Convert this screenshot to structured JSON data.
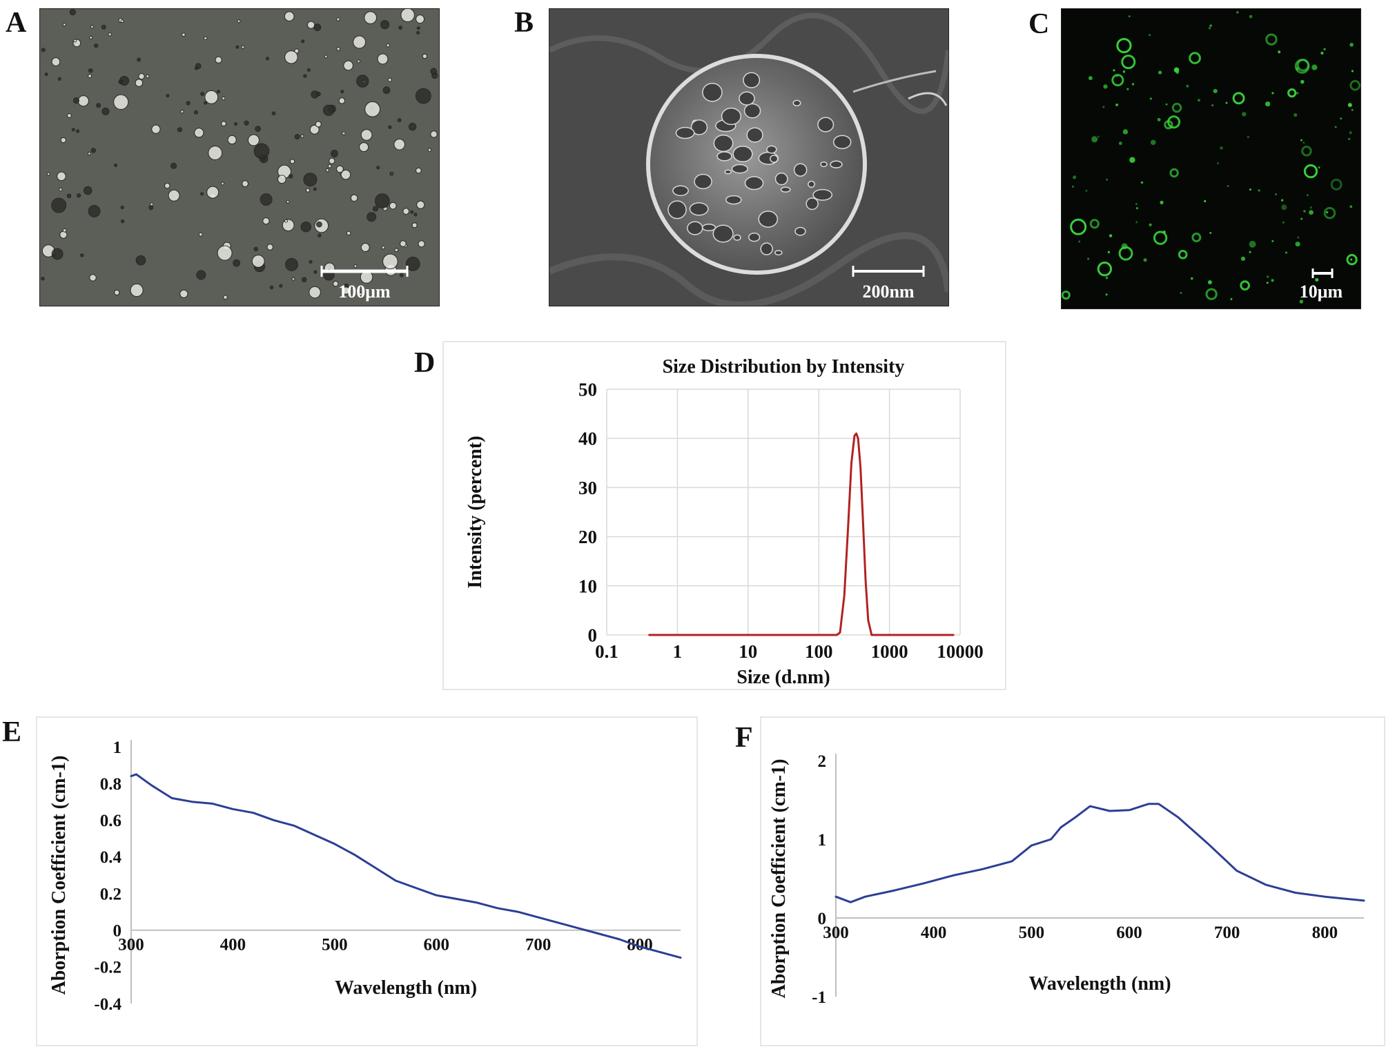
{
  "panels": {
    "A": {
      "letter": "A",
      "scale_bar": "100μm",
      "bg": "#5c5e58"
    },
    "B": {
      "letter": "B",
      "scale_bar": "200nm",
      "bg": "#4a4a4a"
    },
    "C": {
      "letter": "C",
      "scale_bar": "10μm",
      "bg": "#050805",
      "dot_color": "#39d13a"
    },
    "D": {
      "letter": "D"
    },
    "E": {
      "letter": "E"
    },
    "F": {
      "letter": "F"
    }
  },
  "chart_data": [
    {
      "id": "D",
      "type": "line",
      "title": "Size Distribution by Intensity",
      "xlabel": "Size (d.nm)",
      "ylabel": "Intensity (percent)",
      "x_scale": "log",
      "xlim": [
        0.1,
        10000
      ],
      "ylim": [
        0,
        50
      ],
      "x_ticks": [
        "0.1",
        "1",
        "10",
        "100",
        "1000",
        "10000"
      ],
      "y_ticks": [
        "0",
        "10",
        "20",
        "30",
        "40",
        "50"
      ],
      "grid": true,
      "line_color": "#b22222",
      "series": [
        {
          "x": [
            0.4,
            1,
            10,
            100,
            180,
            200,
            230,
            260,
            290,
            320,
            340,
            360,
            390,
            420,
            460,
            500,
            560,
            1000,
            8000
          ],
          "y": [
            0,
            0,
            0,
            0,
            0,
            0.5,
            8,
            22,
            35,
            40.5,
            41,
            40,
            34,
            24,
            11,
            3,
            0,
            0,
            0
          ]
        }
      ]
    },
    {
      "id": "E",
      "type": "line",
      "xlabel": "Wavelength (nm)",
      "ylabel": "Aborption Coefficient (cm-1)",
      "xlim": [
        300,
        840
      ],
      "ylim": [
        -0.4,
        1
      ],
      "x_ticks": [
        "300",
        "400",
        "500",
        "600",
        "700",
        "800"
      ],
      "y_ticks": [
        "-0.4",
        "-0.2",
        "0",
        "0.2",
        "0.4",
        "0.6",
        "0.8",
        "1"
      ],
      "grid": false,
      "line_color": "#2c3f94",
      "series": [
        {
          "x": [
            300,
            305,
            310,
            320,
            340,
            360,
            380,
            400,
            420,
            440,
            460,
            480,
            500,
            520,
            540,
            560,
            580,
            600,
            620,
            640,
            660,
            680,
            700,
            720,
            740,
            760,
            780,
            800,
            820,
            840
          ],
          "y": [
            0.84,
            0.85,
            0.83,
            0.79,
            0.72,
            0.7,
            0.69,
            0.66,
            0.64,
            0.6,
            0.57,
            0.52,
            0.47,
            0.41,
            0.34,
            0.27,
            0.23,
            0.19,
            0.17,
            0.15,
            0.12,
            0.1,
            0.07,
            0.04,
            0.01,
            -0.02,
            -0.05,
            -0.09,
            -0.12,
            -0.15
          ]
        }
      ]
    },
    {
      "id": "F",
      "type": "line",
      "xlabel": "Wavelength (nm)",
      "ylabel": "Aborption Coefficient (cm-1)",
      "xlim": [
        300,
        840
      ],
      "ylim": [
        -1,
        2
      ],
      "x_ticks": [
        "300",
        "400",
        "500",
        "600",
        "700",
        "800"
      ],
      "y_ticks": [
        "-1",
        "0",
        "1",
        "2"
      ],
      "grid": false,
      "line_color": "#2c3f94",
      "series": [
        {
          "x": [
            300,
            315,
            330,
            360,
            390,
            420,
            450,
            480,
            500,
            520,
            530,
            545,
            560,
            580,
            600,
            620,
            630,
            650,
            680,
            710,
            740,
            770,
            800,
            840
          ],
          "y": [
            0.27,
            0.2,
            0.27,
            0.35,
            0.44,
            0.54,
            0.62,
            0.72,
            0.92,
            1.0,
            1.15,
            1.28,
            1.42,
            1.36,
            1.37,
            1.45,
            1.45,
            1.28,
            0.95,
            0.6,
            0.42,
            0.32,
            0.27,
            0.22
          ]
        }
      ]
    }
  ]
}
